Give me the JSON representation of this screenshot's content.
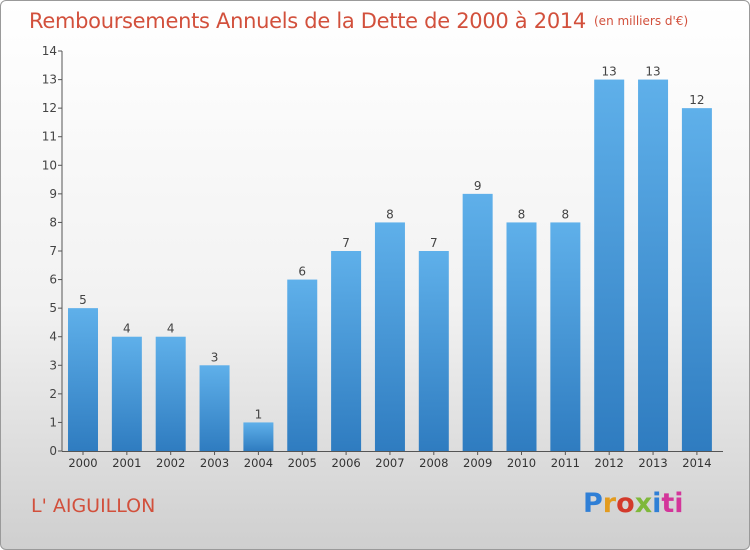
{
  "title": "Remboursements Annuels de la Dette de 2000 à 2014",
  "unit": "(en milliers d'€)",
  "footer": "L' AIGUILLON",
  "logo": "Proxiti",
  "colors": {
    "title": "#d2503c",
    "bar_top": "#5fb0ea",
    "bar_bottom": "#2f7cc0"
  },
  "chart_data": {
    "type": "bar",
    "categories": [
      "2000",
      "2001",
      "2002",
      "2003",
      "2004",
      "2005",
      "2006",
      "2007",
      "2008",
      "2009",
      "2010",
      "2011",
      "2012",
      "2013",
      "2014"
    ],
    "values": [
      5,
      4,
      4,
      3,
      1,
      6,
      7,
      8,
      7,
      9,
      8,
      8,
      13,
      13,
      12
    ],
    "data_labels": [
      "5",
      "4",
      "4",
      "3",
      "1",
      "6",
      "7",
      "8",
      "7",
      "9",
      "8",
      "8",
      "13",
      "13",
      "12"
    ],
    "y_ticks": [
      0,
      1,
      2,
      3,
      4,
      5,
      6,
      7,
      8,
      9,
      10,
      11,
      12,
      13,
      14
    ],
    "ylim": [
      0,
      14
    ],
    "grid": false,
    "legend": "none"
  }
}
